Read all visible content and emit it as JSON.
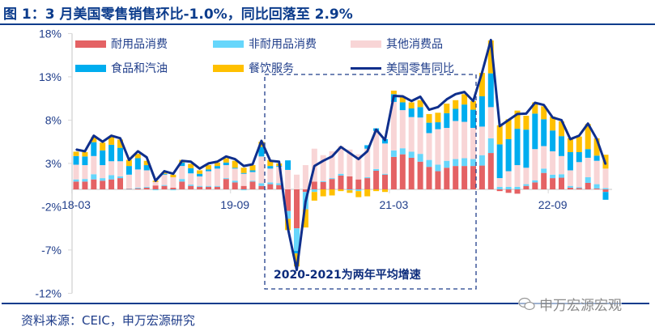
{
  "title": "图 1：3 月美国零售销售环比-1.0%，同比回落至 2.9%",
  "source": "资料来源：CEIC，申万宏源研究",
  "watermark": "申万宏源宏观",
  "annotation": "2020-2021为两年平均增速",
  "colors": {
    "durable": "#e46264",
    "nondurable": "#66d6fb",
    "other": "#f8d5d6",
    "food_gas": "#00adef",
    "dining": "#ffc000",
    "total": "#0f2f8c",
    "text": "#1f3d8a"
  },
  "chart_data": {
    "type": "bar",
    "stacked": true,
    "ylim": [
      -12,
      18
    ],
    "yticks": [
      -12,
      -7,
      -2,
      3,
      8,
      13,
      18
    ],
    "ytick_labels": [
      "-12%",
      "-7%",
      "-2%",
      "3%",
      "8%",
      "13%",
      "18%"
    ],
    "xtick_labels": [
      "18-03",
      "19-09",
      "21-03",
      "22-09"
    ],
    "legend_position": "top",
    "categories": [
      "18-03",
      "18-04",
      "18-05",
      "18-06",
      "18-07",
      "18-08",
      "18-09",
      "18-10",
      "18-11",
      "18-12",
      "19-01",
      "19-02",
      "19-03",
      "19-04",
      "19-05",
      "19-06",
      "19-07",
      "19-08",
      "19-09",
      "19-10",
      "19-11",
      "19-12",
      "20-01",
      "20-02",
      "20-03",
      "20-04",
      "20-05",
      "20-06",
      "20-07",
      "20-08",
      "20-09",
      "20-10",
      "20-11",
      "20-12",
      "21-01",
      "21-02",
      "21-03",
      "21-04",
      "21-05",
      "21-06",
      "21-07",
      "21-08",
      "21-09",
      "21-10",
      "21-11",
      "21-12",
      "22-01",
      "22-02",
      "22-03",
      "22-04",
      "22-05",
      "22-06",
      "22-07",
      "22-08",
      "22-09",
      "22-10",
      "22-11",
      "22-12",
      "23-01",
      "23-02",
      "23-03"
    ],
    "series": [
      {
        "name": "耐用品消费",
        "key": "durable",
        "values": [
          0.9,
          0.9,
          1.15,
          1.0,
          1.15,
          1.3,
          0.05,
          0.1,
          0.2,
          0.45,
          0.4,
          0.2,
          0.9,
          0.4,
          0.3,
          0.3,
          0.3,
          1.2,
          0.8,
          0.4,
          0.9,
          0.4,
          0.6,
          0.5,
          -2.5,
          -4.5,
          -0.3,
          0.9,
          0.85,
          1.2,
          1.6,
          1.5,
          1.15,
          1.3,
          2.15,
          1.7,
          3.75,
          4.05,
          3.65,
          3.2,
          2.6,
          2.1,
          2.5,
          2.7,
          2.7,
          2.7,
          2.75,
          4.2,
          -0.2,
          -0.4,
          -0.5,
          0.4,
          0.8,
          1.9,
          1.3,
          1.35,
          0.2,
          0.15,
          0.75,
          0.1,
          -0.3
        ]
      },
      {
        "name": "非耐用品消费",
        "key": "nondurable",
        "values": [
          0.25,
          0.3,
          0.6,
          0.3,
          0.5,
          0.2,
          0.05,
          0.1,
          0.1,
          -0.1,
          0.1,
          -0.1,
          0.3,
          0.15,
          0.1,
          0.1,
          0.1,
          0.1,
          0.2,
          -0.1,
          0.1,
          0.3,
          0.2,
          0.2,
          -0.9,
          -2.6,
          -2.0,
          -0.3,
          0.1,
          0.1,
          0.2,
          -0.1,
          -0.2,
          0.1,
          0.2,
          0.1,
          0.75,
          0.7,
          0.7,
          0.9,
          0.8,
          0.75,
          0.8,
          0.8,
          0.9,
          0.8,
          1.2,
          1.7,
          0.3,
          0.3,
          0.3,
          0.2,
          0.25,
          0.5,
          0.4,
          0.4,
          0.2,
          0.1,
          0.65,
          0.5,
          0.15
        ]
      },
      {
        "name": "其他消费品",
        "key": "other",
        "values": [
          1.7,
          1.6,
          2.1,
          1.5,
          1.6,
          1.75,
          1.6,
          2.1,
          1.9,
          0.4,
          1.2,
          1.2,
          1.5,
          1.3,
          1.1,
          1.7,
          2.0,
          1.5,
          1.4,
          1.4,
          1.0,
          3.1,
          1.6,
          1.9,
          2.25,
          1.7,
          2.8,
          3.8,
          3.0,
          3.1,
          3.2,
          3.1,
          2.9,
          3.3,
          4.4,
          3.5,
          5.6,
          4.4,
          4.0,
          4.2,
          3.1,
          4.1,
          3.8,
          4.4,
          4.2,
          3.6,
          3.3,
          3.6,
          1.0,
          1.8,
          2.5,
          1.9,
          3.6,
          2.6,
          2.7,
          2.1,
          1.8,
          2.9,
          2.25,
          2.7,
          2.25
        ]
      },
      {
        "name": "食品和汽油",
        "key": "food_gas",
        "values": [
          1.0,
          1.0,
          1.6,
          1.7,
          1.9,
          1.55,
          1.0,
          1.3,
          0.6,
          0,
          0.1,
          0,
          0.4,
          0.6,
          0.3,
          0.2,
          0.3,
          0.3,
          0.1,
          0.1,
          0.2,
          1.1,
          0.3,
          0.1,
          1.1,
          -0.3,
          0,
          0,
          0,
          0,
          0,
          0,
          0,
          0.4,
          0.3,
          0.5,
          0.9,
          0.9,
          1.0,
          1.2,
          1.2,
          0.8,
          1.7,
          1.4,
          2.0,
          2.1,
          3.5,
          3.9,
          3.9,
          3.7,
          4.2,
          4.4,
          4.1,
          3.1,
          2.4,
          2.3,
          2.1,
          1.15,
          1.0,
          0.6,
          -0.9
        ]
      },
      {
        "name": "餐饮服务",
        "key": "dining",
        "values": [
          0.5,
          0.5,
          0.6,
          0.9,
          1.0,
          0.95,
          0.7,
          0.5,
          0.5,
          0.15,
          0.2,
          0.3,
          0.3,
          0.5,
          0.4,
          0.5,
          0.4,
          0.5,
          0.8,
          0.6,
          0.6,
          0.6,
          0.7,
          0.3,
          -1.3,
          -1.5,
          -2.1,
          -1.0,
          -0.8,
          -0.7,
          -0.2,
          -0.3,
          -0.7,
          -0.8,
          -0.2,
          -0.3,
          0.4,
          0.6,
          0.7,
          0.8,
          1.0,
          1.1,
          1.1,
          1.0,
          1.2,
          1.0,
          2.7,
          3.8,
          2.2,
          2.3,
          2.1,
          1.6,
          1.3,
          1.5,
          1.6,
          1.7,
          1.6,
          1.8,
          2.9,
          2.0,
          1.6
        ]
      }
    ],
    "line": {
      "name": "美国零售同比",
      "key": "total",
      "values": [
        4.6,
        4.4,
        6.2,
        5.5,
        6.2,
        5.9,
        3.4,
        4.4,
        3.7,
        1.0,
        2.1,
        1.8,
        3.3,
        3.2,
        2.4,
        3.0,
        3.2,
        3.8,
        3.5,
        2.7,
        2.9,
        5.6,
        3.3,
        3.2,
        -4.5,
        -9.3,
        -1.4,
        2.7,
        3.3,
        3.8,
        4.9,
        4.2,
        3.5,
        4.4,
        6.9,
        5.7,
        10.8,
        10.75,
        10.2,
        10.7,
        9.2,
        9.5,
        10.4,
        11.0,
        11.25,
        10.2,
        13.5,
        17.25,
        7.3,
        8.0,
        8.7,
        8.75,
        10.0,
        9.75,
        8.3,
        8.0,
        5.8,
        6.2,
        7.6,
        5.8,
        2.9
      ]
    }
  }
}
